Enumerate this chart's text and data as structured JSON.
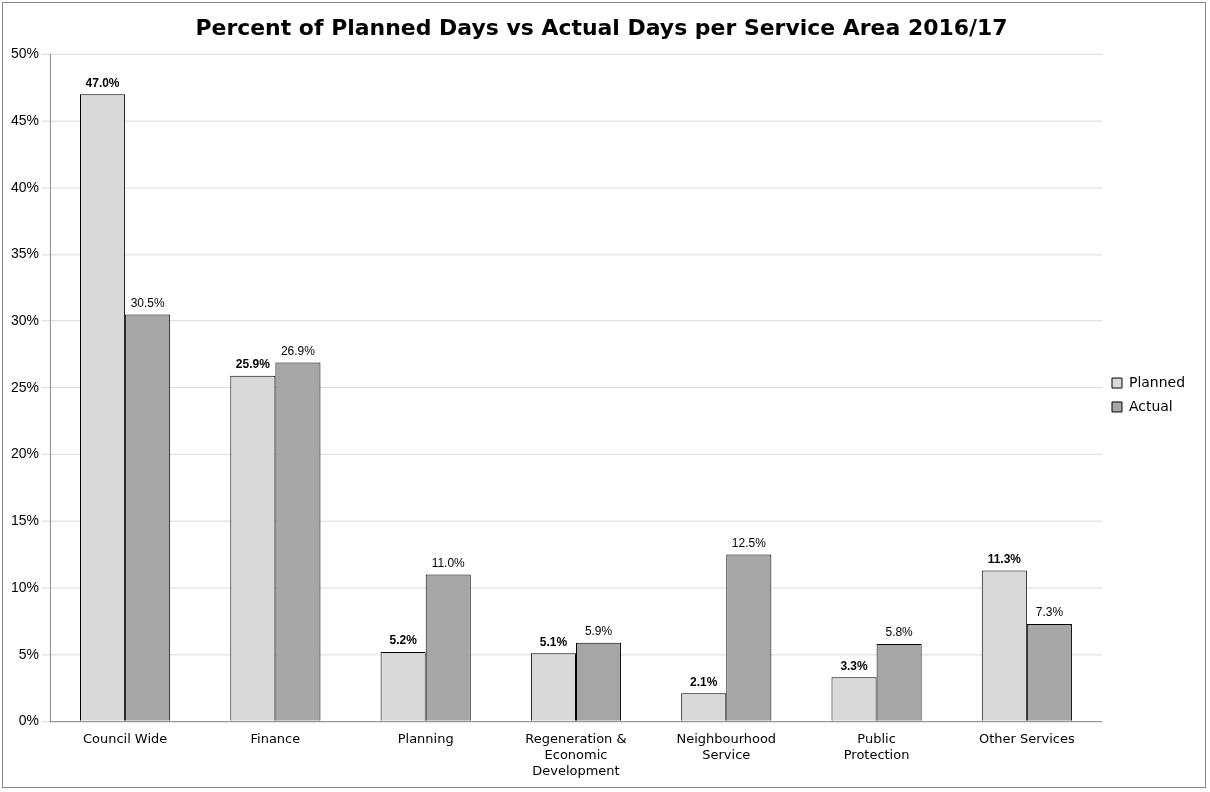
{
  "chart_data": {
    "type": "bar",
    "title": "Percent of Planned Days vs Actual Days per Service Area 2016/17",
    "categories": [
      "Council Wide",
      "Finance",
      "Planning",
      "Regeneration & Economic Development",
      "Neighbourhood Service",
      "Public Protection",
      "Other Services"
    ],
    "series": [
      {
        "name": "Planned",
        "color": "#d9d9d9",
        "values": [
          47.0,
          25.9,
          5.2,
          5.1,
          2.1,
          3.3,
          11.3
        ],
        "value_labels": [
          "47.0%",
          "25.9%",
          "5.2%",
          "5.1%",
          "2.1%",
          "3.3%",
          "11.3%"
        ]
      },
      {
        "name": "Actual",
        "color": "#a6a6a6",
        "values": [
          30.5,
          26.9,
          11.0,
          5.9,
          12.5,
          5.8,
          7.3
        ],
        "value_labels": [
          "30.5%",
          "26.9%",
          "11.0%",
          "5.9%",
          "12.5%",
          "5.8%",
          "7.3%"
        ]
      }
    ],
    "ylim": [
      0,
      50
    ],
    "yticks": [
      {
        "value": 0,
        "label": "0%"
      },
      {
        "value": 5,
        "label": "5%"
      },
      {
        "value": 10,
        "label": "10%"
      },
      {
        "value": 15,
        "label": "15%"
      },
      {
        "value": 20,
        "label": "20%"
      },
      {
        "value": 25,
        "label": "25%"
      },
      {
        "value": 30,
        "label": "30%"
      },
      {
        "value": 35,
        "label": "35%"
      },
      {
        "value": 40,
        "label": "40%"
      },
      {
        "value": 45,
        "label": "45%"
      },
      {
        "value": 50,
        "label": "50%"
      }
    ],
    "grid": "y",
    "legend": "right"
  }
}
